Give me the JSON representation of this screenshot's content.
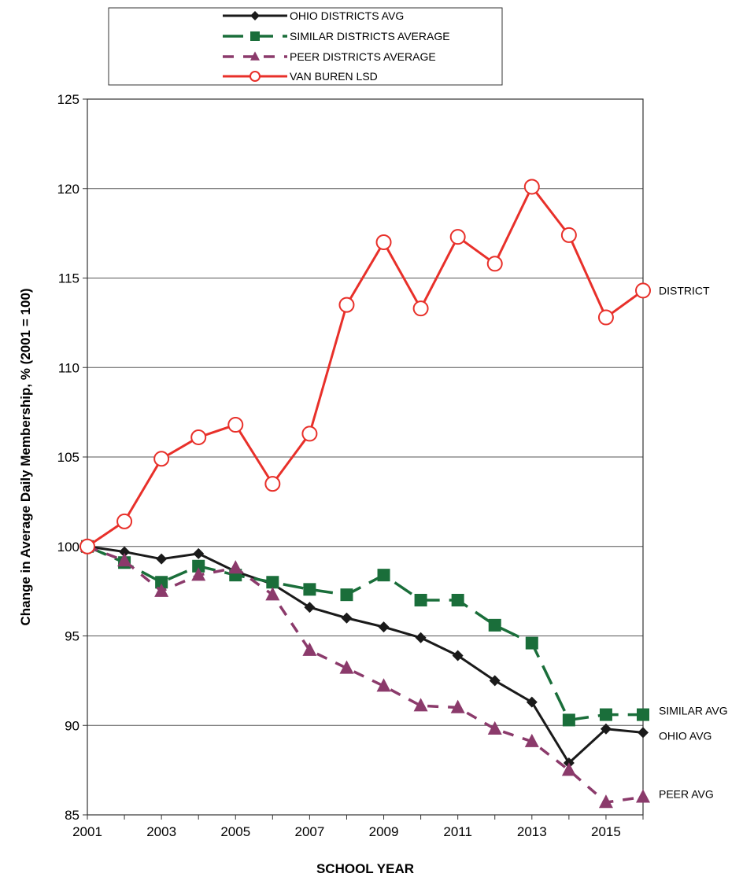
{
  "chart_data": {
    "type": "line",
    "title": "",
    "xlabel": "SCHOOL YEAR",
    "ylabel": "Change in Average Daily Membership, % (2001 = 100)",
    "xlim": [
      2001,
      2016
    ],
    "ylim": [
      85,
      125
    ],
    "x_ticks": [
      "2001",
      "2003",
      "2005",
      "2007",
      "2009",
      "2011",
      "2013",
      "2015"
    ],
    "y_ticks": [
      "125",
      "120",
      "115",
      "110",
      "105",
      "100",
      "95",
      "90",
      "85"
    ],
    "grid": "horizontal",
    "legend_position": "top",
    "x": [
      2001,
      2002,
      2003,
      2004,
      2005,
      2006,
      2007,
      2008,
      2009,
      2010,
      2011,
      2012,
      2013,
      2014,
      2015,
      2016
    ],
    "series": [
      {
        "name": "OHIO DISTRICTS AVG",
        "end_label": "OHIO AVG",
        "color": "#1a1a1a",
        "marker": "diamond",
        "dash": "solid",
        "values": [
          100,
          99.7,
          99.3,
          99.6,
          98.6,
          97.9,
          96.6,
          96.0,
          95.5,
          94.9,
          93.9,
          92.5,
          91.3,
          87.9,
          89.8,
          89.6
        ]
      },
      {
        "name": "SIMILAR DISTRICTS AVERAGE",
        "end_label": "SIMILAR AVG",
        "color": "#1a6e3a",
        "marker": "square",
        "dash": "dashed",
        "values": [
          100,
          99.1,
          98.0,
          98.9,
          98.4,
          98.0,
          97.6,
          97.3,
          98.4,
          97.0,
          97.0,
          95.6,
          94.6,
          90.3,
          90.6,
          90.6
        ]
      },
      {
        "name": "PEER DISTRICTS AVERAGE",
        "end_label": "PEER AVG",
        "color": "#8b3a6b",
        "marker": "triangle",
        "dash": "dashed",
        "values": [
          100,
          99.2,
          97.5,
          98.4,
          98.8,
          97.3,
          94.2,
          93.2,
          92.2,
          91.1,
          91.0,
          89.8,
          89.1,
          87.5,
          85.7,
          86.0
        ]
      },
      {
        "name": "VAN BUREN LSD",
        "end_label": "DISTRICT",
        "color": "#e8302a",
        "marker": "circle",
        "dash": "solid",
        "values": [
          100,
          101.4,
          104.9,
          106.1,
          106.8,
          103.5,
          106.3,
          113.5,
          117.0,
          113.3,
          117.3,
          115.8,
          120.1,
          117.4,
          112.8,
          114.3
        ]
      }
    ]
  }
}
